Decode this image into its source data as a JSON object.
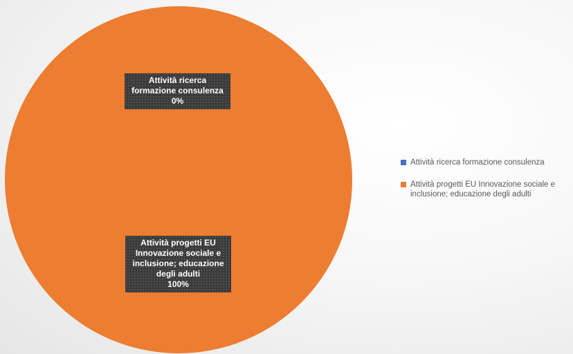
{
  "chart_data": {
    "type": "pie",
    "title": "",
    "series": [
      {
        "values": [
          0,
          100
        ]
      }
    ],
    "slices": [
      {
        "label": "Attività ricerca formazione consulenza",
        "value": 0,
        "percent_label": "0%",
        "color": "#4472C4",
        "data_label_lines": [
          "Attività ricerca",
          "formazione consulenza",
          "0%"
        ]
      },
      {
        "label": "Attività progetti EU Innovazione sociale e inclusione; educazione degli adulti",
        "value": 100,
        "percent_label": "100%",
        "color": "#ED7D31",
        "data_label_lines": [
          "Attività progetti EU",
          "Innovazione sociale e",
          "inclusione; educazione",
          "degli adulti",
          "100%"
        ]
      }
    ],
    "legend": {
      "position": "right",
      "items": [
        {
          "label": "Attività ricerca formazione consulenza",
          "color": "#4472C4"
        },
        {
          "label": "Attività progetti EU Innovazione sociale e inclusione; educazione degli adulti",
          "color": "#ED7D31"
        }
      ]
    }
  }
}
